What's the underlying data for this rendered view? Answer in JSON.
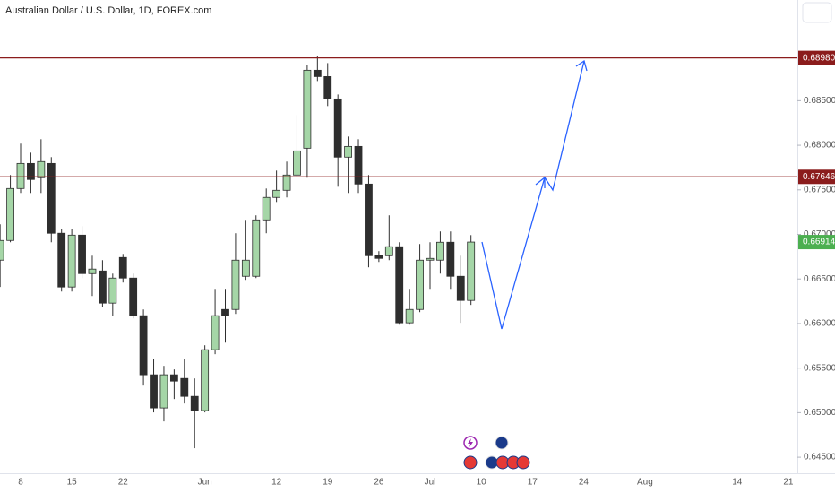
{
  "chart_data": {
    "type": "candlestick",
    "title": "Australian Dollar / U.S. Dollar, 1D, FOREX.com",
    "categories": [
      null,
      null,
      "8",
      null,
      null,
      null,
      null,
      "15",
      null,
      null,
      null,
      null,
      "22",
      null,
      null,
      null,
      null,
      null,
      null,
      null,
      "Jun",
      null,
      null,
      null,
      null,
      null,
      null,
      "12",
      null,
      null,
      null,
      null,
      "19",
      null,
      null,
      null,
      null,
      "26",
      null,
      null,
      null,
      null,
      "Jul",
      null,
      null,
      null,
      null,
      "10",
      null,
      null,
      null,
      null,
      "17",
      null,
      null,
      null,
      null,
      "24",
      null,
      null,
      null,
      null,
      null,
      "Aug",
      null,
      null,
      null,
      null,
      null,
      null,
      null,
      null,
      "14",
      null,
      null,
      null,
      null,
      "21"
    ],
    "open": [
      0.66711,
      0.66932,
      0.67515,
      0.67796,
      0.67636,
      0.67796,
      0.67013,
      0.6641,
      0.66992,
      0.6656,
      0.6659,
      0.66229,
      0.66741,
      0.6651,
      0.66088,
      0.65425,
      0.65053,
      0.65425,
      0.65384,
      0.65183,
      0.65023,
      0.65706,
      0.66158,
      0.66158,
      0.6653,
      0.6653,
      0.67163,
      0.67415,
      0.67495,
      0.67666,
      0.67967,
      0.68842,
      0.68771,
      0.6852,
      0.67867,
      0.67987,
      0.67565,
      0.66761,
      0.66761,
      0.66862,
      0.66008,
      0.66158,
      0.66711,
      0.66711,
      0.66912,
      0.6653,
      0.66259,
      null,
      null,
      null,
      null,
      null,
      null,
      null,
      null,
      null,
      null,
      null,
      null,
      null,
      null,
      null,
      null,
      null,
      null,
      null,
      null,
      null,
      null,
      null,
      null,
      null,
      null,
      null,
      null,
      null,
      null,
      null
    ],
    "high": [
      0.67113,
      0.67666,
      0.68018,
      0.67917,
      0.68068,
      0.67867,
      0.67063,
      0.67063,
      0.67093,
      0.66761,
      0.66711,
      0.6656,
      0.66781,
      0.6656,
      0.66158,
      0.65606,
      0.65525,
      0.65485,
      0.65606,
      0.65384,
      0.65756,
      0.66389,
      0.66389,
      0.67013,
      0.67163,
      0.67214,
      0.67515,
      0.67716,
      0.67817,
      0.68339,
      0.68902,
      0.69002,
      0.68922,
      0.6857,
      0.68098,
      0.68068,
      0.67666,
      0.66812,
      0.67214,
      0.66912,
      0.66389,
      0.66892,
      0.66912,
      0.67033,
      0.67033,
      0.66761,
      0.66992,
      null,
      null,
      null,
      null,
      null,
      null,
      null,
      null,
      null,
      null,
      null,
      null,
      null,
      null,
      null,
      null,
      null,
      null,
      null,
      null,
      null,
      null,
      null,
      null,
      null,
      null,
      null,
      null,
      null,
      null,
      null
    ],
    "low": [
      0.6641,
      0.66912,
      0.67465,
      0.67465,
      0.67465,
      0.66912,
      0.66359,
      0.66359,
      0.6651,
      0.66309,
      0.66188,
      0.66088,
      0.6646,
      0.66058,
      0.65304,
      0.65003,
      0.64902,
      0.65153,
      0.65103,
      0.64601,
      0.65003,
      0.65656,
      0.65786,
      0.66108,
      0.6649,
      0.6651,
      0.67013,
      0.67364,
      0.67415,
      0.67636,
      0.67636,
      0.68721,
      0.6844,
      0.67535,
      0.67465,
      0.67465,
      0.66631,
      0.66691,
      0.66711,
      0.65987,
      0.65987,
      0.66128,
      0.66389,
      0.6656,
      0.66389,
      0.66008,
      0.66209,
      null,
      null,
      null,
      null,
      null,
      null,
      null,
      null,
      null,
      null,
      null,
      null,
      null,
      null,
      null,
      null,
      null,
      null,
      null,
      null,
      null,
      null,
      null,
      null,
      null,
      null,
      null,
      null,
      null,
      null,
      null
    ],
    "close": [
      0.66932,
      0.67515,
      0.67796,
      0.67616,
      0.67817,
      0.67013,
      0.6641,
      0.66992,
      0.6656,
      0.66611,
      0.66229,
      0.6651,
      0.6651,
      0.66088,
      0.65425,
      0.65053,
      0.65425,
      0.65354,
      0.65183,
      0.65023,
      0.65706,
      0.66088,
      0.66088,
      0.66711,
      0.66711,
      0.67163,
      0.67415,
      0.67495,
      0.67666,
      0.67937,
      0.68842,
      0.68771,
      0.6852,
      0.67867,
      0.67987,
      0.67565,
      0.66761,
      0.66731,
      0.66862,
      0.66008,
      0.66158,
      0.66711,
      0.66731,
      0.66912,
      0.6653,
      0.66259,
      0.66914,
      null,
      null,
      null,
      null,
      null,
      null,
      null,
      null,
      null,
      null,
      null,
      null,
      null,
      null,
      null,
      null,
      null,
      null,
      null,
      null,
      null,
      null,
      null,
      null,
      null,
      null,
      null,
      null,
      null,
      null,
      null
    ],
    "up_color": "#a5d6a7",
    "down_color": "#2e2e2e",
    "wick_color": "#2e2e2e",
    "ylim": [
      0.6432,
      0.6963
    ],
    "yticks": [
      {
        "value": 0.645,
        "label": "0.64500"
      },
      {
        "value": 0.65,
        "label": "0.65000"
      },
      {
        "value": 0.655,
        "label": "0.65500"
      },
      {
        "value": 0.66,
        "label": "0.66000"
      },
      {
        "value": 0.665,
        "label": "0.66500"
      },
      {
        "value": 0.67,
        "label": "0.67000"
      },
      {
        "value": 0.675,
        "label": "0.67500"
      },
      {
        "value": 0.68,
        "label": "0.68000"
      },
      {
        "value": 0.685,
        "label": "0.68500"
      }
    ],
    "levels": [
      {
        "value": 0.6898,
        "label": "0.68980"
      },
      {
        "value": 0.67646,
        "label": "0.67646"
      }
    ],
    "level_color": "#8b1c1c",
    "last_price": {
      "value": 0.66914,
      "label": "0.66914"
    },
    "last_price_color": "#4caf50",
    "grid": false
  }
}
